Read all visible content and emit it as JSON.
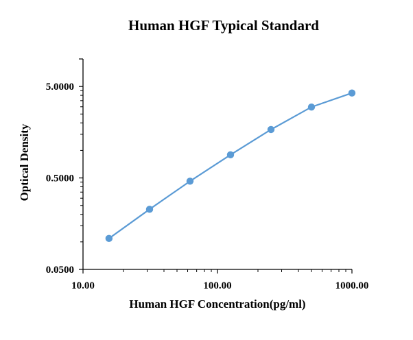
{
  "chart_data": {
    "type": "scatter",
    "title": "Human HGF Typical Standard",
    "xlabel": "Human HGF Concentration(pg/ml)",
    "ylabel": "Optical Density",
    "x_scale": "log",
    "y_scale": "log",
    "xlim": [
      10,
      1000
    ],
    "ylim": [
      0.05,
      10
    ],
    "x_ticks": [
      10,
      100,
      1000
    ],
    "x_tick_labels": [
      "10.00",
      "100.00",
      "1000.00"
    ],
    "y_ticks": [
      0.05,
      0.5,
      5
    ],
    "y_tick_labels": [
      "0.0500",
      "0.5000",
      "5.0000"
    ],
    "grid": false,
    "legend": "none",
    "series": [
      {
        "x": [
          15.6,
          31.25,
          62.5,
          125,
          250,
          500,
          1000
        ],
        "y": [
          0.109,
          0.227,
          0.461,
          0.895,
          1.691,
          2.98,
          4.24
        ]
      }
    ],
    "colors": {
      "line": "#5b9bd5",
      "marker": "#5b9bd5",
      "axis": "#000000"
    }
  }
}
